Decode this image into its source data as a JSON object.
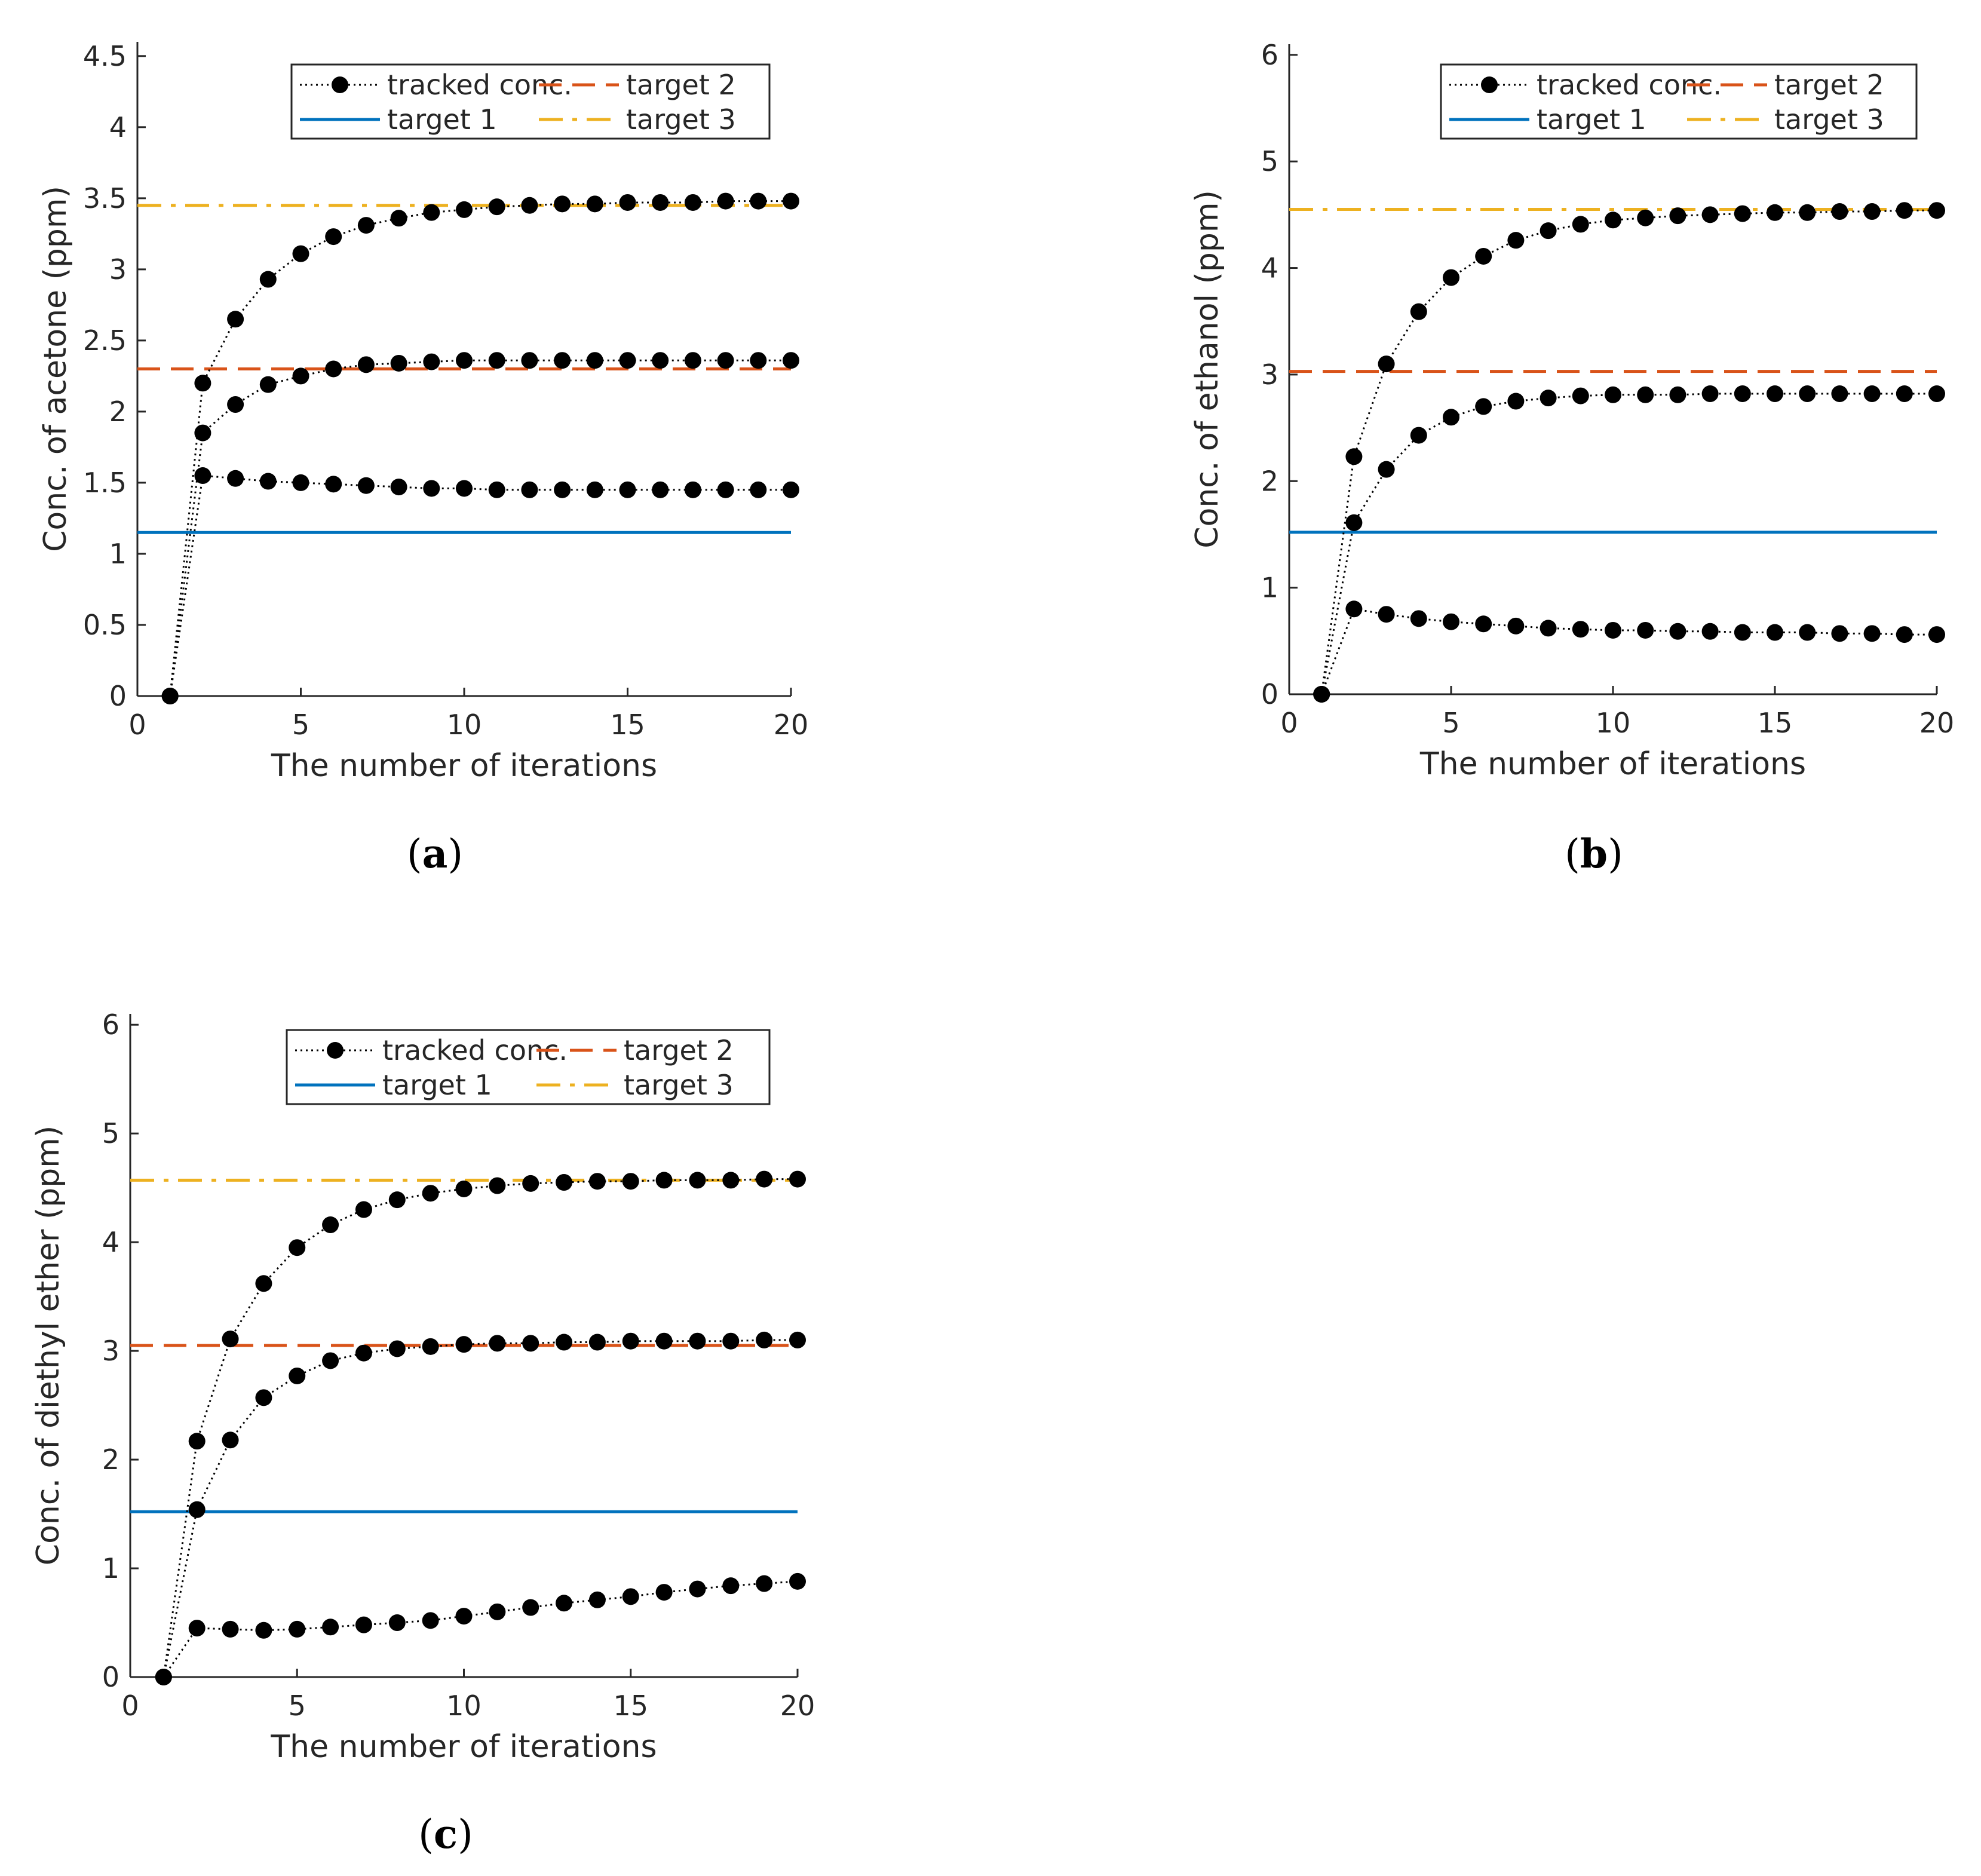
{
  "chart_data": [
    {
      "type": "line",
      "caption": "a",
      "xlabel": "The number of iterations",
      "ylabel": "Conc. of acetone (ppm)",
      "xlim": [
        0,
        20
      ],
      "ylim": [
        0,
        4.6
      ],
      "xticks": [
        "0",
        "5",
        "10",
        "15",
        "20"
      ],
      "yticks": [
        "0",
        "0.5",
        "1",
        "1.5",
        "2",
        "2.5",
        "3",
        "3.5",
        "4",
        "4.5"
      ],
      "legend": [
        "tracked conc.",
        "target 1",
        "target 2",
        "target 3"
      ],
      "targets": [
        {
          "name": "target 1",
          "value": 1.15,
          "color": "#0072BD",
          "style": "solid"
        },
        {
          "name": "target 2",
          "value": 2.3,
          "color": "#D95319",
          "style": "dashed"
        },
        {
          "name": "target 3",
          "value": 3.45,
          "color": "#EDB120",
          "style": "dashdot"
        }
      ],
      "series": [
        {
          "name": "tracked conc. (target 1)",
          "x": [
            1,
            2,
            3,
            4,
            5,
            6,
            7,
            8,
            9,
            10,
            11,
            12,
            13,
            14,
            15,
            16,
            17,
            18,
            19,
            20
          ],
          "values": [
            0,
            1.55,
            1.53,
            1.51,
            1.5,
            1.49,
            1.48,
            1.47,
            1.46,
            1.46,
            1.45,
            1.45,
            1.45,
            1.45,
            1.45,
            1.45,
            1.45,
            1.45,
            1.45,
            1.45
          ]
        },
        {
          "name": "tracked conc. (target 2)",
          "x": [
            1,
            2,
            3,
            4,
            5,
            6,
            7,
            8,
            9,
            10,
            11,
            12,
            13,
            14,
            15,
            16,
            17,
            18,
            19,
            20
          ],
          "values": [
            0,
            1.85,
            2.05,
            2.19,
            2.25,
            2.3,
            2.33,
            2.34,
            2.35,
            2.36,
            2.36,
            2.36,
            2.36,
            2.36,
            2.36,
            2.36,
            2.36,
            2.36,
            2.36,
            2.36
          ]
        },
        {
          "name": "tracked conc. (target 3)",
          "x": [
            1,
            2,
            3,
            4,
            5,
            6,
            7,
            8,
            9,
            10,
            11,
            12,
            13,
            14,
            15,
            16,
            17,
            18,
            19,
            20
          ],
          "values": [
            0,
            2.2,
            2.65,
            2.93,
            3.11,
            3.23,
            3.31,
            3.36,
            3.4,
            3.42,
            3.44,
            3.45,
            3.46,
            3.46,
            3.47,
            3.47,
            3.47,
            3.48,
            3.48,
            3.48
          ]
        }
      ]
    },
    {
      "type": "line",
      "caption": "b",
      "xlabel": "The number of iterations",
      "ylabel": "Conc. of ethanol (ppm)",
      "xlim": [
        0,
        20
      ],
      "ylim": [
        0,
        6.1
      ],
      "xticks": [
        "0",
        "5",
        "10",
        "15",
        "20"
      ],
      "yticks": [
        "0",
        "1",
        "2",
        "3",
        "4",
        "5",
        "6"
      ],
      "legend": [
        "tracked conc.",
        "target 1",
        "target 2",
        "target 3"
      ],
      "targets": [
        {
          "name": "target 1",
          "value": 1.52,
          "color": "#0072BD",
          "style": "solid"
        },
        {
          "name": "target 2",
          "value": 3.03,
          "color": "#D95319",
          "style": "dashed"
        },
        {
          "name": "target 3",
          "value": 4.55,
          "color": "#EDB120",
          "style": "dashdot"
        }
      ],
      "series": [
        {
          "name": "tracked conc. (target 1)",
          "x": [
            1,
            2,
            3,
            4,
            5,
            6,
            7,
            8,
            9,
            10,
            11,
            12,
            13,
            14,
            15,
            16,
            17,
            18,
            19,
            20
          ],
          "values": [
            0,
            0.8,
            0.75,
            0.71,
            0.68,
            0.66,
            0.64,
            0.62,
            0.61,
            0.6,
            0.6,
            0.59,
            0.59,
            0.58,
            0.58,
            0.58,
            0.57,
            0.57,
            0.56,
            0.56
          ]
        },
        {
          "name": "tracked conc. (target 2)",
          "x": [
            1,
            2,
            3,
            4,
            5,
            6,
            7,
            8,
            9,
            10,
            11,
            12,
            13,
            14,
            15,
            16,
            17,
            18,
            19,
            20
          ],
          "values": [
            0,
            1.61,
            2.11,
            2.43,
            2.6,
            2.7,
            2.75,
            2.78,
            2.8,
            2.81,
            2.81,
            2.81,
            2.82,
            2.82,
            2.82,
            2.82,
            2.82,
            2.82,
            2.82,
            2.82
          ]
        },
        {
          "name": "tracked conc. (target 3)",
          "x": [
            1,
            2,
            3,
            4,
            5,
            6,
            7,
            8,
            9,
            10,
            11,
            12,
            13,
            14,
            15,
            16,
            17,
            18,
            19,
            20
          ],
          "values": [
            0,
            2.23,
            3.1,
            3.59,
            3.91,
            4.11,
            4.26,
            4.35,
            4.41,
            4.45,
            4.47,
            4.49,
            4.5,
            4.51,
            4.52,
            4.52,
            4.53,
            4.53,
            4.54,
            4.54
          ]
        }
      ]
    },
    {
      "type": "line",
      "caption": "c",
      "xlabel": "The number of iterations",
      "ylabel": "Conc. of diethyl ether (ppm)",
      "xlim": [
        0,
        20
      ],
      "ylim": [
        0,
        6.1
      ],
      "xticks": [
        "0",
        "5",
        "10",
        "15",
        "20"
      ],
      "yticks": [
        "0",
        "1",
        "2",
        "3",
        "4",
        "5",
        "6"
      ],
      "legend": [
        "tracked conc.",
        "target 1",
        "target 2",
        "target 3"
      ],
      "targets": [
        {
          "name": "target 1",
          "value": 1.52,
          "color": "#0072BD",
          "style": "solid"
        },
        {
          "name": "target 2",
          "value": 3.05,
          "color": "#D95319",
          "style": "dashed"
        },
        {
          "name": "target 3",
          "value": 4.57,
          "color": "#EDB120",
          "style": "dashdot"
        }
      ],
      "series": [
        {
          "name": "tracked conc. (target 1)",
          "x": [
            1,
            2,
            3,
            4,
            5,
            6,
            7,
            8,
            9,
            10,
            11,
            12,
            13,
            14,
            15,
            16,
            17,
            18,
            19,
            20
          ],
          "values": [
            0,
            0.45,
            0.44,
            0.43,
            0.44,
            0.46,
            0.48,
            0.5,
            0.52,
            0.56,
            0.6,
            0.64,
            0.68,
            0.71,
            0.74,
            0.78,
            0.81,
            0.84,
            0.86,
            0.88
          ]
        },
        {
          "name": "tracked conc. (target 2)",
          "x": [
            1,
            2,
            3,
            4,
            5,
            6,
            7,
            8,
            9,
            10,
            11,
            12,
            13,
            14,
            15,
            16,
            17,
            18,
            19,
            20
          ],
          "values": [
            0,
            1.54,
            2.18,
            2.57,
            2.77,
            2.91,
            2.98,
            3.02,
            3.04,
            3.06,
            3.07,
            3.07,
            3.08,
            3.08,
            3.09,
            3.09,
            3.09,
            3.09,
            3.1,
            3.1
          ]
        },
        {
          "name": "tracked conc. (target 3)",
          "x": [
            1,
            2,
            3,
            4,
            5,
            6,
            7,
            8,
            9,
            10,
            11,
            12,
            13,
            14,
            15,
            16,
            17,
            18,
            19,
            20
          ],
          "values": [
            0,
            2.17,
            3.11,
            3.62,
            3.95,
            4.16,
            4.3,
            4.39,
            4.45,
            4.49,
            4.52,
            4.54,
            4.55,
            4.56,
            4.56,
            4.57,
            4.57,
            4.57,
            4.58,
            4.58
          ]
        }
      ]
    }
  ]
}
